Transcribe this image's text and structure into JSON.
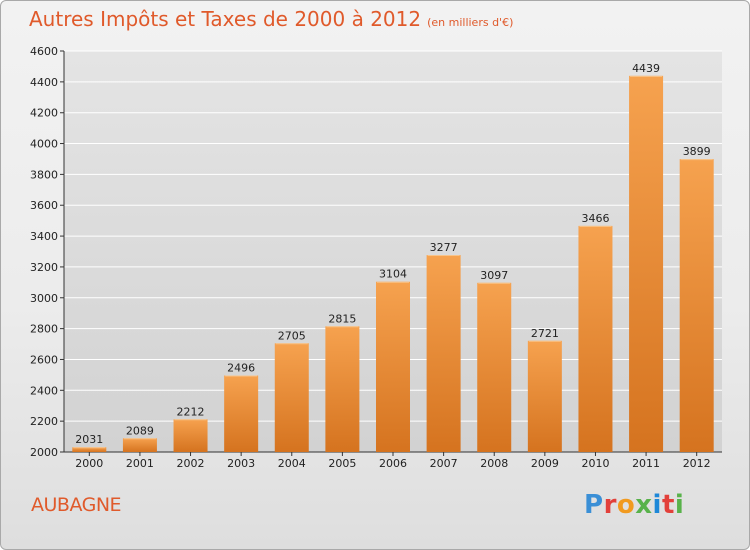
{
  "title": "Autres Impôts et Taxes de 2000 à 2012",
  "subtitle": "(en milliers d'€)",
  "city": "AUBAGNE",
  "logo": {
    "letters": [
      "P",
      "r",
      "o",
      "x",
      "i",
      "t",
      "i"
    ],
    "colors": [
      "#3a8fd6",
      "#e2403a",
      "#f19a1f",
      "#58b24a",
      "#1e88d8",
      "#e2403a",
      "#58b24a"
    ]
  },
  "colors": {
    "bar_top": "#f6a24f",
    "bar_bottom": "#d5731f",
    "title": "#e05a2b",
    "grid": "#ffffff",
    "axis": "#333333"
  },
  "chart_data": {
    "type": "bar",
    "title": "Autres Impôts et Taxes de 2000 à 2012",
    "subtitle": "(en milliers d'€)",
    "categories": [
      "2000",
      "2001",
      "2002",
      "2003",
      "2004",
      "2005",
      "2006",
      "2007",
      "2008",
      "2009",
      "2010",
      "2011",
      "2012"
    ],
    "values": [
      2031,
      2089,
      2212,
      2496,
      2705,
      2815,
      3104,
      3277,
      3097,
      2721,
      3466,
      4439,
      3899
    ],
    "value_labels": [
      "2031",
      "2089",
      "2212",
      "2496",
      "2705",
      "2815",
      "3104",
      "3277",
      "3097",
      "2721",
      "3466",
      "4439",
      "3899"
    ],
    "y_ticks": [
      "2000",
      "2200",
      "2400",
      "2600",
      "2800",
      "3000",
      "3200",
      "3400",
      "3600",
      "3800",
      "4000",
      "4200",
      "4400",
      "4600"
    ],
    "ylim": [
      2000,
      4600
    ],
    "xlabel": "",
    "ylabel": "",
    "grid": true,
    "legend": "none"
  }
}
